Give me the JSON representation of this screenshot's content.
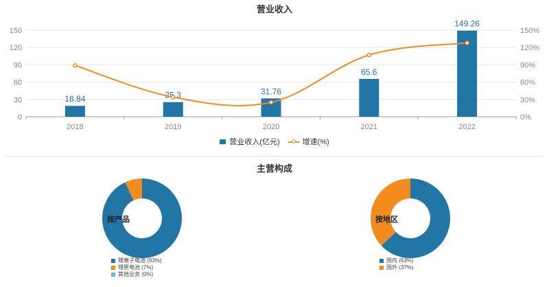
{
  "chart_data": [
    {
      "type": "bar",
      "title": "营业收入",
      "categories": [
        "2018",
        "2019",
        "2020",
        "2021",
        "2022"
      ],
      "series": [
        {
          "name": "营业收入(亿元)",
          "type": "bar",
          "axis": "left",
          "values": [
            18.84,
            25.3,
            31.76,
            65.6,
            149.26
          ],
          "color": "#2176a6"
        },
        {
          "name": "增速(%)",
          "type": "line",
          "axis": "right",
          "values": [
            89,
            34,
            25,
            107,
            128
          ],
          "color": "#f28c1e"
        }
      ],
      "ylim_left": [
        0,
        150
      ],
      "yticks_left": [
        0,
        30,
        60,
        90,
        120,
        150
      ],
      "ylim_right": [
        0,
        150
      ],
      "yticks_right": [
        "0%",
        "30%",
        "60%",
        "90%",
        "120%",
        "150%"
      ],
      "legend_position": "bottom"
    },
    {
      "type": "pie",
      "label": "按产品",
      "slices": [
        {
          "name": "锂离子电池 (93%)",
          "value": 93,
          "color": "#2176a6"
        },
        {
          "name": "锂原电池 (7%)",
          "value": 7,
          "color": "#f28c1e"
        },
        {
          "name": "其他业务 (0%)",
          "value": 0,
          "color": "#5bc0de"
        }
      ]
    },
    {
      "type": "pie",
      "label": "按地区",
      "slices": [
        {
          "name": "国内 (63%)",
          "value": 63,
          "color": "#2176a6"
        },
        {
          "name": "国外 (37%)",
          "value": 37,
          "color": "#f28c1e"
        }
      ]
    }
  ],
  "composition_title": "主营构成"
}
